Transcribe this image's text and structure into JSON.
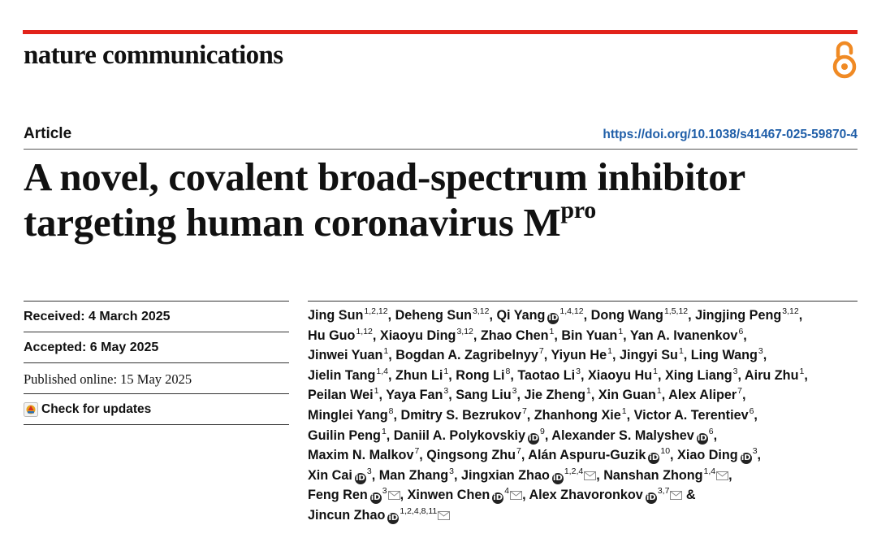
{
  "header": {
    "journal_name": "nature communications",
    "accent_color": "#e2231a",
    "open_access_icon": "open-access-lock-icon"
  },
  "article": {
    "type": "Article",
    "doi": "https://doi.org/10.1038/s41467-025-59870-4",
    "title_main": "A novel, covalent broad-spectrum inhibitor targeting human coronavirus M",
    "title_sup": "pro"
  },
  "dates": {
    "received": "Received: 4 March 2025",
    "accepted": "Accepted: 6 May 2025",
    "published": "Published online: 15 May 2025",
    "check_updates": "Check for updates"
  },
  "authors": [
    {
      "name": "Jing Sun",
      "aff": "1,2,12",
      "orcid": false,
      "mail": false
    },
    {
      "name": "Deheng Sun",
      "aff": "3,12",
      "orcid": false,
      "mail": false
    },
    {
      "name": "Qi Yang",
      "aff": "1,4,12",
      "orcid": true,
      "mail": false
    },
    {
      "name": "Dong Wang",
      "aff": "1,5,12",
      "orcid": false,
      "mail": false
    },
    {
      "name": "Jingjing Peng",
      "aff": "3,12",
      "orcid": false,
      "mail": false
    },
    {
      "name": "Hu Guo",
      "aff": "1,12",
      "orcid": false,
      "mail": false
    },
    {
      "name": "Xiaoyu Ding",
      "aff": "3,12",
      "orcid": false,
      "mail": false
    },
    {
      "name": "Zhao Chen",
      "aff": "1",
      "orcid": false,
      "mail": false
    },
    {
      "name": "Bin Yuan",
      "aff": "1",
      "orcid": false,
      "mail": false
    },
    {
      "name": "Yan A. Ivanenkov",
      "aff": "6",
      "orcid": false,
      "mail": false
    },
    {
      "name": "Jinwei Yuan",
      "aff": "1",
      "orcid": false,
      "mail": false
    },
    {
      "name": "Bogdan A. Zagribelnyy",
      "aff": "7",
      "orcid": false,
      "mail": false
    },
    {
      "name": "Yiyun He",
      "aff": "1",
      "orcid": false,
      "mail": false
    },
    {
      "name": "Jingyi Su",
      "aff": "1",
      "orcid": false,
      "mail": false
    },
    {
      "name": "Ling Wang",
      "aff": "3",
      "orcid": false,
      "mail": false
    },
    {
      "name": "Jielin Tang",
      "aff": "1,4",
      "orcid": false,
      "mail": false
    },
    {
      "name": "Zhun Li",
      "aff": "1",
      "orcid": false,
      "mail": false
    },
    {
      "name": "Rong Li",
      "aff": "8",
      "orcid": false,
      "mail": false
    },
    {
      "name": "Taotao Li",
      "aff": "3",
      "orcid": false,
      "mail": false
    },
    {
      "name": "Xiaoyu Hu",
      "aff": "1",
      "orcid": false,
      "mail": false
    },
    {
      "name": "Xing Liang",
      "aff": "3",
      "orcid": false,
      "mail": false
    },
    {
      "name": "Airu Zhu",
      "aff": "1",
      "orcid": false,
      "mail": false
    },
    {
      "name": "Peilan Wei",
      "aff": "1",
      "orcid": false,
      "mail": false
    },
    {
      "name": "Yaya Fan",
      "aff": "3",
      "orcid": false,
      "mail": false
    },
    {
      "name": "Sang Liu",
      "aff": "3",
      "orcid": false,
      "mail": false
    },
    {
      "name": "Jie Zheng",
      "aff": "1",
      "orcid": false,
      "mail": false
    },
    {
      "name": "Xin Guan",
      "aff": "1",
      "orcid": false,
      "mail": false
    },
    {
      "name": "Alex Aliper",
      "aff": "7",
      "orcid": false,
      "mail": false
    },
    {
      "name": "Minglei Yang",
      "aff": "8",
      "orcid": false,
      "mail": false
    },
    {
      "name": "Dmitry S. Bezrukov",
      "aff": "7",
      "orcid": false,
      "mail": false
    },
    {
      "name": "Zhanhong Xie",
      "aff": "1",
      "orcid": false,
      "mail": false
    },
    {
      "name": "Victor A. Terentiev",
      "aff": "6",
      "orcid": false,
      "mail": false
    },
    {
      "name": "Guilin Peng",
      "aff": "1",
      "orcid": false,
      "mail": false
    },
    {
      "name": "Daniil A. Polykovskiy",
      "aff": "9",
      "orcid": true,
      "mail": false
    },
    {
      "name": "Alexander S. Malyshev",
      "aff": "6",
      "orcid": true,
      "mail": false
    },
    {
      "name": "Maxim N. Malkov",
      "aff": "7",
      "orcid": false,
      "mail": false
    },
    {
      "name": "Qingsong Zhu",
      "aff": "7",
      "orcid": false,
      "mail": false
    },
    {
      "name": "Alán Aspuru-Guzik",
      "aff": "10",
      "orcid": true,
      "mail": false
    },
    {
      "name": "Xiao Ding",
      "aff": "3",
      "orcid": true,
      "mail": false
    },
    {
      "name": "Xin Cai",
      "aff": "3",
      "orcid": true,
      "mail": false
    },
    {
      "name": "Man Zhang",
      "aff": "3",
      "orcid": false,
      "mail": false
    },
    {
      "name": "Jingxian Zhao",
      "aff": "1,2,4",
      "orcid": true,
      "mail": true
    },
    {
      "name": "Nanshan Zhong",
      "aff": "1,4",
      "orcid": false,
      "mail": true
    },
    {
      "name": "Feng Ren",
      "aff": "3",
      "orcid": true,
      "mail": true
    },
    {
      "name": "Xinwen Chen",
      "aff": "4",
      "orcid": true,
      "mail": true
    },
    {
      "name": "Alex Zhavoronkov",
      "aff": "3,7",
      "orcid": true,
      "mail": true,
      "amp": true
    },
    {
      "name": "Jincun Zhao",
      "aff": "1,2,4,8,11",
      "orcid": true,
      "mail": true,
      "last": true
    }
  ],
  "author_lines": [
    [
      0,
      1,
      2,
      3,
      4
    ],
    [
      5,
      6,
      7,
      8,
      9
    ],
    [
      10,
      11,
      12,
      13,
      14
    ],
    [
      15,
      16,
      17,
      18,
      19,
      20,
      21
    ],
    [
      22,
      23,
      24,
      25,
      26,
      27
    ],
    [
      28,
      29,
      30,
      31
    ],
    [
      32,
      33,
      34
    ],
    [
      35,
      36,
      37,
      38
    ],
    [
      39,
      40,
      41,
      42
    ],
    [
      43,
      44,
      45
    ],
    [
      46
    ]
  ]
}
